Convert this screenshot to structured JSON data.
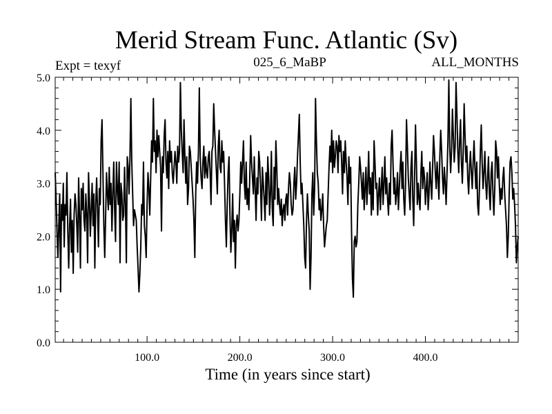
{
  "chart_data": {
    "type": "line",
    "title": "Merid Stream Func. Atlantic (Sv)",
    "header_left": "Expt = texyf",
    "header_center": "025_6_MaBP",
    "header_right": "ALL_MONTHS",
    "xlabel": "Time (in years since start)",
    "ylabel": "",
    "xlim": [
      1,
      500
    ],
    "ylim": [
      0,
      5
    ],
    "x_ticks": [
      100,
      200,
      300,
      400
    ],
    "x_tick_labels": [
      "100.0",
      "200.0",
      "300.0",
      "400.0"
    ],
    "y_ticks": [
      0,
      1,
      2,
      3,
      4,
      5
    ],
    "y_tick_labels": [
      "0.0",
      "1.0",
      "2.0",
      "3.0",
      "4.0",
      "5.0"
    ],
    "series": [
      {
        "values": [
          3.2,
          2.7,
          2.1,
          1.6,
          2.2,
          2.8,
          0.95,
          2.6,
          2.3,
          3.0,
          1.8,
          2.6,
          2.4,
          3.2,
          2.1,
          1.4,
          2.2,
          2.7,
          1.7,
          2.3,
          1.3,
          2.4,
          2.8,
          2.6,
          2.2,
          1.7,
          3.1,
          2.4,
          1.4,
          2.9,
          2.5,
          3.0,
          2.3,
          2.1,
          2.8,
          2.4,
          1.5,
          3.2,
          2.7,
          2.0,
          2.5,
          3.0,
          2.2,
          2.8,
          1.4,
          2.6,
          3.1,
          2.5,
          1.8,
          2.9,
          2.6,
          3.8,
          4.2,
          3.2,
          2.2,
          1.6,
          2.4,
          3.2,
          2.8,
          2.5,
          3.3,
          2.6,
          3.0,
          2.1,
          2.8,
          3.4,
          2.5,
          1.9,
          3.4,
          2.9,
          2.6,
          3.4,
          1.5,
          3.0,
          2.8,
          2.3,
          2.4,
          3.3,
          2.6,
          1.5,
          3.5,
          3.3,
          2.8,
          3.5,
          4.6,
          3.4,
          2.8,
          2.2,
          2.5,
          2.4,
          2.3,
          1.8,
          1.4,
          0.95,
          1.3,
          1.8,
          2.6,
          2.4,
          3.4,
          2.2,
          2.0,
          1.6,
          2.6,
          3.2,
          2.9,
          2.4,
          3.1,
          3.8,
          3.4,
          4.6,
          3.6,
          3.8,
          3.2,
          4.0,
          3.5,
          3.9,
          3.6,
          3.3,
          2.1,
          3.5,
          3.2,
          3.9,
          4.2,
          3.4,
          3.1,
          3.6,
          2.9,
          3.8,
          3.4,
          3.6,
          3.2,
          3.0,
          3.3,
          3.6,
          3.4,
          3.0,
          3.7,
          3.4,
          3.6,
          4.9,
          4.0,
          3.6,
          3.2,
          4.2,
          3.5,
          3.0,
          3.5,
          2.6,
          2.9,
          3.7,
          3.6,
          3.3,
          3.0,
          2.7,
          2.3,
          1.6,
          2.8,
          3.4,
          3.0,
          3.6,
          4.8,
          3.5,
          3.1,
          2.9,
          3.4,
          3.7,
          3.1,
          3.5,
          3.2,
          3.1,
          3.5,
          3.6,
          3.2,
          2.6,
          3.6,
          3.7,
          4.5,
          4.0,
          3.6,
          3.2,
          2.8,
          3.7,
          4.0,
          3.3,
          3.2,
          3.8,
          3.4,
          3.6,
          3.0,
          2.3,
          1.8,
          2.6,
          3.2,
          3.5,
          2.4,
          1.7,
          2.1,
          2.8,
          1.9,
          2.3,
          1.4,
          2.2,
          2.4,
          2.1,
          2.3,
          2.8,
          3.4,
          3.0,
          3.4,
          3.8,
          3.0,
          2.7,
          3.4,
          2.6,
          2.9,
          2.5,
          3.1,
          3.9,
          3.4,
          3.1,
          2.8,
          3.5,
          2.9,
          2.3,
          3.1,
          2.8,
          3.6,
          3.4,
          2.9,
          2.3,
          3.3,
          3.0,
          2.7,
          2.3,
          3.2,
          2.6,
          3.5,
          3.1,
          2.4,
          2.8,
          3.6,
          2.5,
          2.2,
          3.3,
          2.7,
          3.8,
          3.3,
          2.6,
          2.9,
          2.6,
          2.4,
          2.7,
          2.2,
          2.5,
          2.6,
          2.3,
          2.7,
          2.8,
          2.4,
          2.9,
          3.2,
          3.0,
          2.6,
          2.4,
          2.5,
          3.0,
          3.3,
          2.7,
          3.0,
          3.5,
          3.9,
          4.3,
          3.4,
          2.8,
          3.0,
          2.6,
          2.2,
          1.6,
          1.4,
          2.3,
          2.8,
          2.4,
          2.1,
          1.0,
          1.6,
          2.8,
          3.2,
          2.4,
          2.9,
          4.6,
          3.8,
          3.2,
          3.0,
          2.5,
          2.7,
          2.3,
          2.5,
          2.8,
          2.2,
          1.8,
          2.0,
          2.2,
          2.3,
          2.8,
          3.3,
          3.7,
          3.4,
          4.0,
          3.2,
          3.8,
          3.3,
          3.5,
          3.8,
          3.7,
          3.2,
          3.9,
          3.6,
          3.8,
          3.4,
          2.8,
          3.6,
          3.2,
          3.8,
          3.4,
          3.1,
          2.6,
          3.5,
          3.0,
          3.3,
          2.1,
          1.2,
          0.85,
          1.9,
          2.0,
          1.8,
          1.9,
          2.6,
          3.0,
          3.5,
          3.3,
          3.0,
          2.7,
          3.2,
          2.5,
          2.9,
          3.3,
          2.6,
          3.0,
          3.6,
          2.8,
          3.1,
          2.4,
          3.2,
          2.5,
          3.8,
          3.4,
          2.9,
          3.0,
          2.4,
          2.8,
          3.1,
          2.5,
          2.9,
          3.3,
          2.6,
          3.0,
          3.5,
          2.8,
          3.1,
          2.7,
          2.4,
          3.0,
          2.6,
          3.7,
          4.0,
          3.4,
          2.8,
          3.1,
          2.6,
          2.8,
          3.2,
          2.5,
          2.9,
          3.3,
          3.6,
          2.9,
          3.4,
          2.7,
          2.4,
          3.0,
          4.2,
          3.7,
          3.1,
          2.8,
          2.5,
          3.3,
          3.6,
          2.7,
          2.2,
          3.1,
          4.1,
          3.4,
          2.6,
          3.0,
          2.7,
          2.5,
          3.2,
          3.6,
          2.9,
          3.3,
          3.1,
          2.6,
          2.9,
          3.2,
          2.5,
          2.8,
          3.4,
          3.0,
          2.7,
          3.3,
          3.9,
          3.6,
          3.2,
          2.9,
          3.4,
          3.1,
          2.7,
          3.5,
          4.0,
          3.6,
          3.1,
          2.8,
          3.3,
          3.0,
          2.6,
          3.2,
          3.8,
          4.95,
          3.7,
          3.2,
          3.6,
          4.4,
          3.9,
          3.4,
          3.7,
          4.9,
          4.3,
          3.6,
          3.2,
          3.8,
          4.2,
          3.4,
          3.0,
          3.6,
          4.5,
          3.9,
          3.4,
          3.7,
          3.1,
          2.8,
          3.3,
          3.6,
          3.2,
          2.9,
          3.4,
          3.8,
          3.3,
          2.9,
          3.4,
          2.6,
          2.4,
          2.9,
          3.6,
          4.1,
          3.4,
          2.9,
          3.2,
          3.6,
          3.0,
          2.7,
          3.1,
          3.5,
          2.8,
          2.5,
          3.2,
          3.4,
          2.8,
          2.4,
          2.9,
          3.8,
          3.6,
          3.1,
          3.5,
          3.0,
          2.6,
          2.9,
          2.7,
          3.1,
          3.3,
          2.8,
          2.5,
          2.2,
          1.6,
          2.0,
          2.8,
          3.4,
          3.5,
          3.2,
          2.7,
          2.9,
          2.6,
          2.2,
          1.5,
          1.8,
          2.0
        ]
      }
    ]
  }
}
